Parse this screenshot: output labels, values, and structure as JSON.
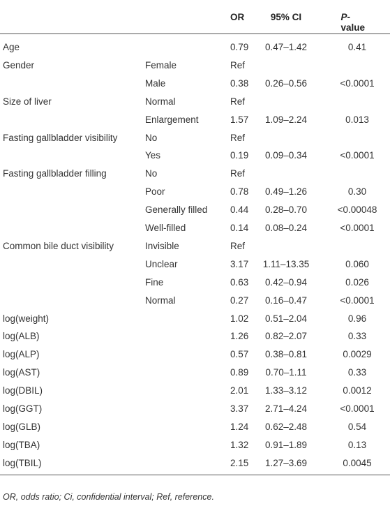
{
  "table": {
    "header": [
      "OR",
      "95% CI",
      [
        "P",
        "-value"
      ]
    ],
    "rows": [
      [
        "Age",
        null,
        "0.79",
        "0.47–1.42",
        "0.41"
      ],
      [
        "Gender",
        "Female",
        "Ref",
        null,
        null
      ],
      [
        null,
        "Male",
        "0.38",
        "0.26–0.56",
        "<0.0001"
      ],
      [
        "Size of liver",
        "Normal",
        "Ref",
        null,
        null
      ],
      [
        null,
        "Enlargement",
        "1.57",
        "1.09–2.24",
        "0.013"
      ],
      [
        "Fasting gallbladder visibility",
        "No",
        "Ref",
        null,
        null
      ],
      [
        null,
        "Yes",
        "0.19",
        "0.09–0.34",
        "<0.0001"
      ],
      [
        "Fasting gallbladder filling",
        "No",
        "Ref",
        null,
        null
      ],
      [
        null,
        "Poor",
        "0.78",
        "0.49–1.26",
        "0.30"
      ],
      [
        null,
        "Generally filled",
        "0.44",
        "0.28–0.70",
        "<0.00048"
      ],
      [
        null,
        "Well-filled",
        "0.14",
        "0.08–0.24",
        "<0.0001"
      ],
      [
        "Common bile duct visibility",
        "Invisible",
        "Ref",
        null,
        null
      ],
      [
        null,
        "Unclear",
        "3.17",
        "1.11–13.35",
        "0.060"
      ],
      [
        null,
        "Fine",
        "0.63",
        "0.42–0.94",
        "0.026"
      ],
      [
        null,
        "Normal",
        "0.27",
        "0.16–0.47",
        "<0.0001"
      ],
      [
        "log(weight)",
        null,
        "1.02",
        "0.51–2.04",
        "0.96"
      ],
      [
        "log(ALB)",
        null,
        "1.26",
        "0.82–2.07",
        "0.33"
      ],
      [
        "log(ALP)",
        null,
        "0.57",
        "0.38–0.81",
        "0.0029"
      ],
      [
        "log(AST)",
        null,
        "0.89",
        "0.70–1.11",
        "0.33"
      ],
      [
        "log(DBIL)",
        null,
        "2.01",
        "1.33–3.12",
        "0.0012"
      ],
      [
        "log(GGT)",
        null,
        "3.37",
        "2.71–4.24",
        "<0.0001"
      ],
      [
        "log(GLB)",
        null,
        "1.24",
        "0.62–2.48",
        "0.54"
      ],
      [
        "log(TBA)",
        null,
        "1.32",
        "0.91–1.89",
        "0.13"
      ],
      [
        "log(TBIL)",
        null,
        "2.15",
        "1.27–3.69",
        "0.0045"
      ]
    ]
  },
  "footnote": "OR, odds ratio; Ci, confidential interval; Ref, reference."
}
